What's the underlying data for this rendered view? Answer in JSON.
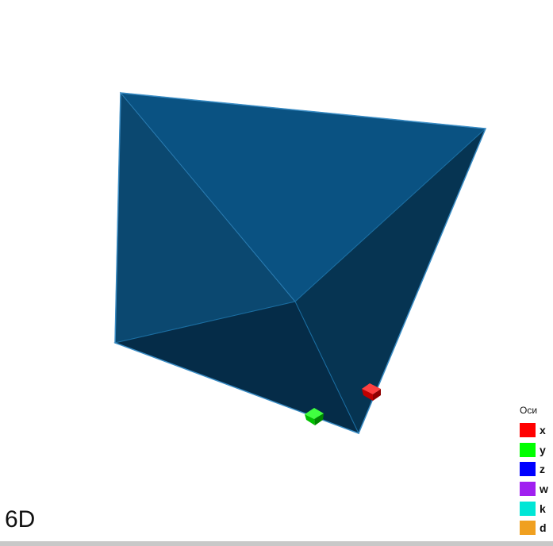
{
  "view": {
    "dimension_label": "6D",
    "polytope_color": "#0a5282"
  },
  "legend": {
    "title": "Оси",
    "items": [
      {
        "label": "x",
        "color": "#ff0000"
      },
      {
        "label": "y",
        "color": "#00ff00"
      },
      {
        "label": "z",
        "color": "#0000ff"
      },
      {
        "label": "w",
        "color": "#a020f0"
      },
      {
        "label": "k",
        "color": "#00e6d6"
      },
      {
        "label": "d",
        "color": "#f0a020"
      }
    ]
  },
  "axis_markers": [
    {
      "axis": "x",
      "color": "#e00000"
    },
    {
      "axis": "y",
      "color": "#00d000"
    }
  ]
}
